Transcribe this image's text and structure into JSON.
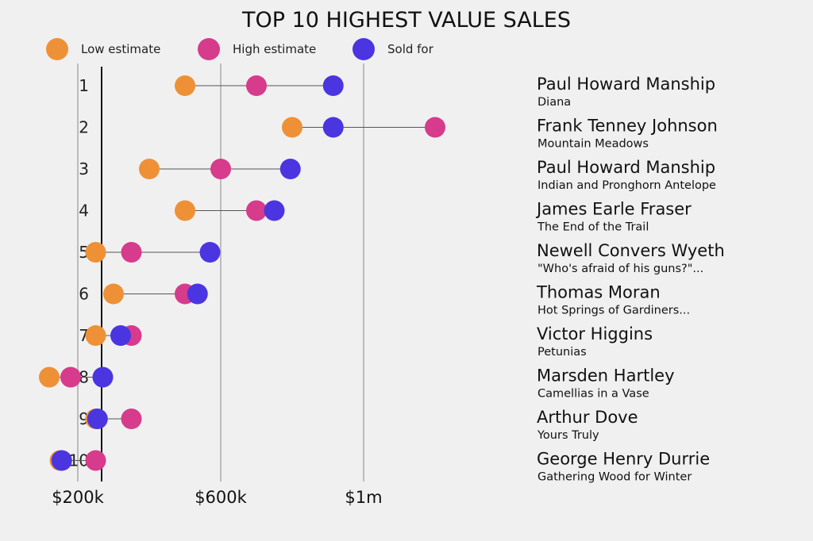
{
  "chart_data": {
    "type": "dot-plot",
    "title": "TOP 10 HIGHEST VALUE SALES",
    "xlim": [
      0,
      1200000
    ],
    "x_ticks": [
      {
        "value": 200000,
        "label": "$200k"
      },
      {
        "value": 600000,
        "label": "$600k"
      },
      {
        "value": 1000000,
        "label": "$1m"
      }
    ],
    "series": [
      {
        "key": "low",
        "name": "Low estimate",
        "color": "#ee9136"
      },
      {
        "key": "high",
        "name": "High estimate",
        "color": "#d63b8c"
      },
      {
        "key": "sold",
        "name": "Sold for",
        "color": "#4b35e0"
      }
    ],
    "rows": [
      {
        "rank": "1",
        "artist": "Paul Howard Manship",
        "work": "Diana",
        "low": 500000,
        "high": 700000,
        "sold": 915000
      },
      {
        "rank": "2",
        "artist": "Frank Tenney Johnson",
        "work": "Mountain Meadows",
        "low": 800000,
        "high": 1200000,
        "sold": 915000
      },
      {
        "rank": "3",
        "artist": "Paul Howard Manship",
        "work": "Indian and Pronghorn Antelope",
        "low": 400000,
        "high": 600000,
        "sold": 795000
      },
      {
        "rank": "4",
        "artist": "James Earle Fraser",
        "work": "The End of the Trail",
        "low": 500000,
        "high": 700000,
        "sold": 750000
      },
      {
        "rank": "5",
        "artist": "Newell Convers Wyeth",
        "work": "\"Who's afraid of his guns?\"...",
        "low": 250000,
        "high": 350000,
        "sold": 570000
      },
      {
        "rank": "6",
        "artist": "Thomas Moran",
        "work": "Hot Springs of Gardiners...",
        "low": 300000,
        "high": 500000,
        "sold": 535000
      },
      {
        "rank": "7",
        "artist": "Victor Higgins",
        "work": "Petunias",
        "low": 250000,
        "high": 350000,
        "sold": 320000
      },
      {
        "rank": "8",
        "artist": "Marsden Hartley",
        "work": "Camellias in a Vase",
        "low": 120000,
        "high": 180000,
        "sold": 270000
      },
      {
        "rank": "9",
        "artist": "Arthur Dove",
        "work": "Yours Truly",
        "low": 250000,
        "high": 350000,
        "sold": 255000
      },
      {
        "rank": "10",
        "artist": "George Henry Durrie",
        "work": "Gathering Wood for Winter",
        "low": 150000,
        "high": 250000,
        "sold": 155000
      }
    ]
  }
}
